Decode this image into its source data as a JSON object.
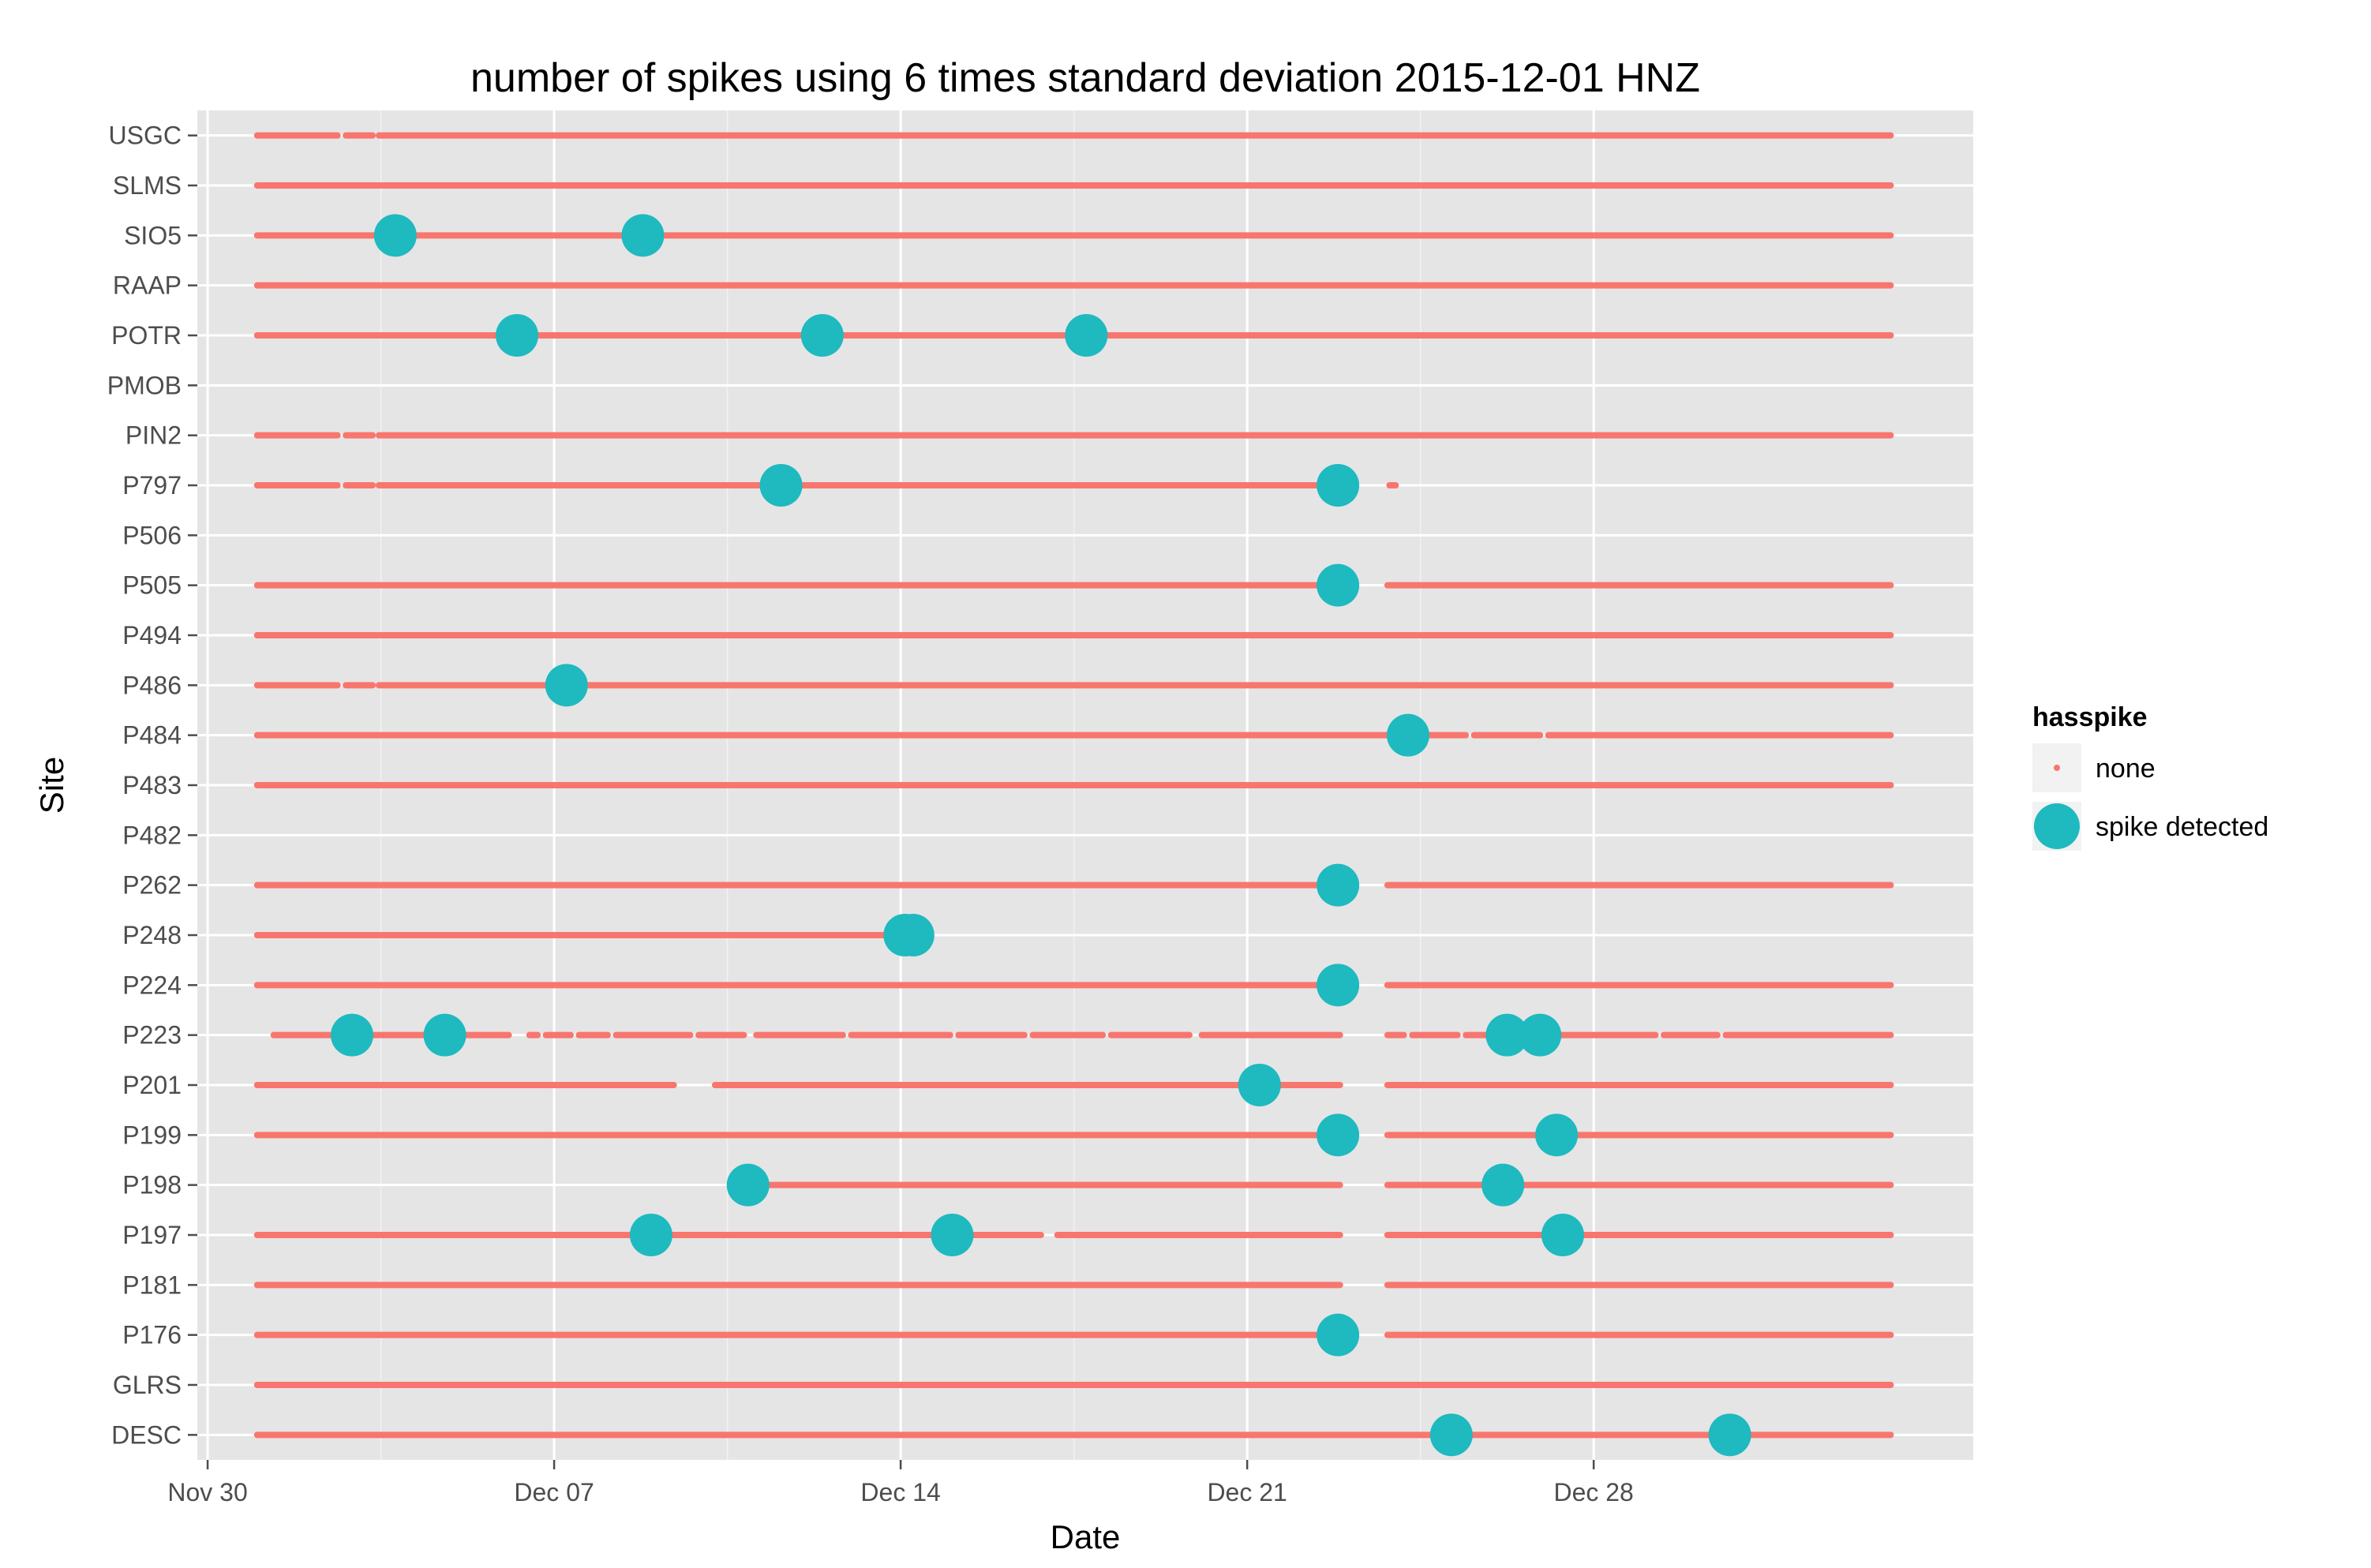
{
  "chart_data": {
    "type": "scatter",
    "title": "number of spikes using  6 times standard deviation 2015-12-01 HNZ",
    "xlabel": "Date",
    "ylabel": "Site",
    "x_ticks": [
      "Nov 30",
      "Dec 07",
      "Dec 14",
      "Dec 21",
      "Dec 28"
    ],
    "x_tick_dates": [
      "2015-11-30",
      "2015-12-07",
      "2015-12-14",
      "2015-12-21",
      "2015-12-28"
    ],
    "xlim": [
      "2015-11-29T19:00",
      "2016-01-04T16:00"
    ],
    "sites": [
      "USGC",
      "SLMS",
      "SIO5",
      "RAAP",
      "POTR",
      "PMOB",
      "PIN2",
      "P797",
      "P506",
      "P505",
      "P494",
      "P486",
      "P484",
      "P483",
      "P482",
      "P262",
      "P248",
      "P224",
      "P223",
      "P201",
      "P199",
      "P198",
      "P197",
      "P181",
      "P176",
      "GLRS",
      "DESC"
    ],
    "grid": true,
    "legend_position": "right",
    "legend": {
      "title": "hasspike",
      "items": [
        {
          "label": "none",
          "color": "#F8766D"
        },
        {
          "label": "spike detected",
          "color": "#1FB9C0"
        }
      ]
    },
    "series": [
      {
        "name": "none",
        "color": "#F8766D",
        "coverage": [
          {
            "site": "USGC",
            "ranges": [
              [
                "2015-12-01",
                "2015-12-02T15:00"
              ],
              [
                "2015-12-02T19:00",
                "2015-12-03T08:00"
              ],
              [
                "2015-12-03T11:00",
                "2016-01-03"
              ]
            ]
          },
          {
            "site": "SLMS",
            "ranges": [
              [
                "2015-12-01",
                "2016-01-03"
              ]
            ]
          },
          {
            "site": "SIO5",
            "ranges": [
              [
                "2015-12-01",
                "2016-01-03"
              ]
            ]
          },
          {
            "site": "RAAP",
            "ranges": [
              [
                "2015-12-01",
                "2016-01-03"
              ]
            ]
          },
          {
            "site": "POTR",
            "ranges": [
              [
                "2015-12-01",
                "2015-12-06T10:00"
              ],
              [
                "2015-12-06T14:00",
                "2016-01-03"
              ]
            ]
          },
          {
            "site": "PMOB",
            "ranges": []
          },
          {
            "site": "PIN2",
            "ranges": [
              [
                "2015-12-01",
                "2015-12-02T15:00"
              ],
              [
                "2015-12-02T19:00",
                "2015-12-03T08:00"
              ],
              [
                "2015-12-03T11:00",
                "2016-01-03"
              ]
            ]
          },
          {
            "site": "P797",
            "ranges": [
              [
                "2015-12-01",
                "2015-12-02T15:00"
              ],
              [
                "2015-12-02T19:00",
                "2015-12-03T08:00"
              ],
              [
                "2015-12-03T11:00",
                "2015-12-22T21:00"
              ],
              [
                "2015-12-23T21:00",
                "2015-12-24T00:00"
              ]
            ]
          },
          {
            "site": "P506",
            "ranges": []
          },
          {
            "site": "P505",
            "ranges": [
              [
                "2015-12-01",
                "2015-12-22T21:00"
              ],
              [
                "2015-12-23T20:00",
                "2016-01-03"
              ]
            ]
          },
          {
            "site": "P494",
            "ranges": [
              [
                "2015-12-01",
                "2016-01-03"
              ]
            ]
          },
          {
            "site": "P486",
            "ranges": [
              [
                "2015-12-01",
                "2015-12-02T15:00"
              ],
              [
                "2015-12-02T19:00",
                "2015-12-03T08:00"
              ],
              [
                "2015-12-03T11:00",
                "2016-01-03"
              ]
            ]
          },
          {
            "site": "P484",
            "ranges": [
              [
                "2015-12-01",
                "2015-12-25T10:00"
              ],
              [
                "2015-12-25T14:00",
                "2015-12-26T22:00"
              ],
              [
                "2015-12-27T02:00",
                "2016-01-03"
              ]
            ]
          },
          {
            "site": "P483",
            "ranges": [
              [
                "2015-12-01",
                "2016-01-03"
              ]
            ]
          },
          {
            "site": "P482",
            "ranges": []
          },
          {
            "site": "P262",
            "ranges": [
              [
                "2015-12-01",
                "2015-12-22T21:00"
              ],
              [
                "2015-12-23T20:00",
                "2016-01-03"
              ]
            ]
          },
          {
            "site": "P248",
            "ranges": [
              [
                "2015-12-01",
                "2015-12-14T06:00"
              ]
            ]
          },
          {
            "site": "P224",
            "ranges": [
              [
                "2015-12-01",
                "2015-12-22T21:00"
              ],
              [
                "2015-12-23T20:00",
                "2016-01-03"
              ]
            ]
          },
          {
            "site": "P223",
            "ranges": [
              [
                "2015-12-01T08:00",
                "2015-12-06T02:00"
              ],
              [
                "2015-12-06T12:00",
                "2015-12-06T16:00"
              ],
              [
                "2015-12-06T20:00",
                "2015-12-07T08:00"
              ],
              [
                "2015-12-07T12:00",
                "2015-12-08T02:00"
              ],
              [
                "2015-12-08T06:00",
                "2015-12-09T18:00"
              ],
              [
                "2015-12-09T22:00",
                "2015-12-10T20:00"
              ],
              [
                "2015-12-11T02:00",
                "2015-12-12T20:00"
              ],
              [
                "2015-12-13T00:00",
                "2015-12-15T00:00"
              ],
              [
                "2015-12-15T04:00",
                "2015-12-16T12:00"
              ],
              [
                "2015-12-16T16:00",
                "2015-12-18T02:00"
              ],
              [
                "2015-12-18T06:00",
                "2015-12-19T20:00"
              ],
              [
                "2015-12-20T02:00",
                "2015-12-22T21:00"
              ],
              [
                "2015-12-23T20:00",
                "2015-12-24T04:00"
              ],
              [
                "2015-12-24T08:00",
                "2015-12-25T06:00"
              ],
              [
                "2015-12-25T10:00",
                "2015-12-29T06:00"
              ],
              [
                "2015-12-29T10:00",
                "2015-12-30T12:00"
              ],
              [
                "2015-12-30T16:00",
                "2016-01-03"
              ]
            ]
          },
          {
            "site": "P201",
            "ranges": [
              [
                "2015-12-01",
                "2015-12-09T10:00"
              ],
              [
                "2015-12-10T06:00",
                "2015-12-22T21:00"
              ],
              [
                "2015-12-23T20:00",
                "2016-01-03"
              ]
            ]
          },
          {
            "site": "P199",
            "ranges": [
              [
                "2015-12-01",
                "2015-12-22T21:00"
              ],
              [
                "2015-12-23T20:00",
                "2016-01-03"
              ]
            ]
          },
          {
            "site": "P198",
            "ranges": [
              [
                "2015-12-10T22:00",
                "2015-12-22T21:00"
              ],
              [
                "2015-12-23T20:00",
                "2016-01-03"
              ]
            ]
          },
          {
            "site": "P197",
            "ranges": [
              [
                "2015-12-01",
                "2015-12-16T20:00"
              ],
              [
                "2015-12-17T04:00",
                "2015-12-22T21:00"
              ],
              [
                "2015-12-23T20:00",
                "2016-01-03"
              ]
            ]
          },
          {
            "site": "P181",
            "ranges": [
              [
                "2015-12-01",
                "2015-12-22T21:00"
              ],
              [
                "2015-12-23T20:00",
                "2016-01-03"
              ]
            ]
          },
          {
            "site": "P176",
            "ranges": [
              [
                "2015-12-01",
                "2015-12-22T21:00"
              ],
              [
                "2015-12-23T20:00",
                "2016-01-03"
              ]
            ]
          },
          {
            "site": "GLRS",
            "ranges": [
              [
                "2015-12-01",
                "2016-01-03"
              ]
            ]
          },
          {
            "site": "DESC",
            "ranges": [
              [
                "2015-12-01",
                "2016-01-03"
              ]
            ]
          }
        ]
      },
      {
        "name": "spike detected",
        "color": "#1FB9C0",
        "points": [
          {
            "site": "SIO5",
            "x": "2015-12-03T19:00"
          },
          {
            "site": "SIO5",
            "x": "2015-12-08T19:00"
          },
          {
            "site": "POTR",
            "x": "2015-12-06T06:00"
          },
          {
            "site": "POTR",
            "x": "2015-12-12T10:00"
          },
          {
            "site": "POTR",
            "x": "2015-12-17T18:00"
          },
          {
            "site": "P797",
            "x": "2015-12-11T14:00"
          },
          {
            "site": "P797",
            "x": "2015-12-22T20:00"
          },
          {
            "site": "P505",
            "x": "2015-12-22T20:00"
          },
          {
            "site": "P486",
            "x": "2015-12-07T06:00"
          },
          {
            "site": "P484",
            "x": "2015-12-24T06:00"
          },
          {
            "site": "P262",
            "x": "2015-12-22T20:00"
          },
          {
            "site": "P248",
            "x": "2015-12-14T02:00"
          },
          {
            "site": "P248",
            "x": "2015-12-14T06:00"
          },
          {
            "site": "P224",
            "x": "2015-12-22T20:00"
          },
          {
            "site": "P223",
            "x": "2015-12-02T22:00"
          },
          {
            "site": "P223",
            "x": "2015-12-04T19:00"
          },
          {
            "site": "P223",
            "x": "2015-12-26T06:00"
          },
          {
            "site": "P223",
            "x": "2015-12-26T22:00"
          },
          {
            "site": "P201",
            "x": "2015-12-21T06:00"
          },
          {
            "site": "P199",
            "x": "2015-12-22T20:00"
          },
          {
            "site": "P199",
            "x": "2015-12-27T06:00"
          },
          {
            "site": "P198",
            "x": "2015-12-10T22:00"
          },
          {
            "site": "P198",
            "x": "2015-12-26T04:00"
          },
          {
            "site": "P197",
            "x": "2015-12-08T23:00"
          },
          {
            "site": "P197",
            "x": "2015-12-15T01:00"
          },
          {
            "site": "P197",
            "x": "2015-12-27T09:00"
          },
          {
            "site": "P176",
            "x": "2015-12-22T20:00"
          },
          {
            "site": "DESC",
            "x": "2015-12-25T03:00"
          },
          {
            "site": "DESC",
            "x": "2015-12-30T18:00"
          }
        ]
      }
    ]
  }
}
